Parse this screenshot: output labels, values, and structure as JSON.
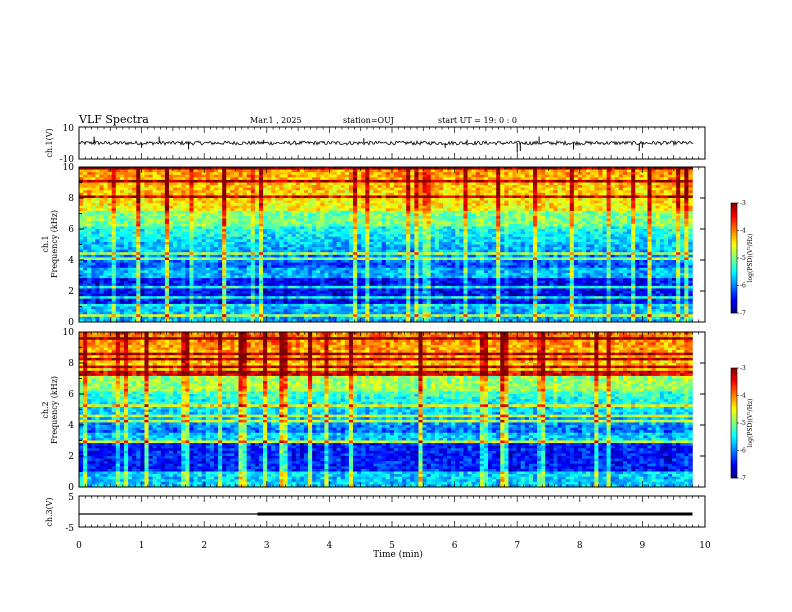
{
  "header": {
    "title": "VLF Spectra",
    "date": "Mar.1  , 2025",
    "station": "station=OUJ",
    "start": "start  UT  =   19: 0  : 0"
  },
  "chart_data": [
    {
      "type": "line",
      "name": "ch1-waveform",
      "ylabel": "ch.1(V)",
      "ylim": [
        -10,
        10
      ],
      "yticks": [
        "10",
        "-10"
      ],
      "xlim": [
        0,
        10
      ],
      "baseline": 0,
      "noise_amplitude": 1.2,
      "spikes_x_min": [
        0.24,
        0.25,
        1.0,
        1.28,
        1.75,
        2.95,
        4.55,
        5.85,
        6.2,
        7.0,
        7.05,
        7.35,
        7.9,
        8.95,
        9.0
      ],
      "spikes_y": [
        4,
        2,
        -3,
        4,
        -4,
        2,
        3,
        -3,
        2,
        -6,
        -5,
        4,
        -4,
        -5,
        -3
      ]
    },
    {
      "type": "heatmap",
      "name": "ch1-spectrogram",
      "ylabel_channel": "ch.1",
      "ylabel": "Frequency (kHz)",
      "ylim": [
        0,
        10
      ],
      "yticks": [
        "0",
        "2",
        "4",
        "6",
        "8",
        "10"
      ],
      "xlim": [
        0,
        10
      ],
      "colorbar": {
        "label": "log(PSD)(V²/Hz)",
        "range": [
          -7,
          -3
        ],
        "ticks": [
          "-3",
          "-4",
          "-5",
          "-6",
          "-7"
        ]
      }
    },
    {
      "type": "heatmap",
      "name": "ch2-spectrogram",
      "ylabel_channel": "ch.2",
      "ylabel": "Frequency (kHz)",
      "ylim": [
        0,
        10
      ],
      "yticks": [
        "0",
        "2",
        "4",
        "6",
        "8",
        "10"
      ],
      "xlim": [
        0,
        10
      ],
      "colorbar": {
        "label": "log(PSD)(V²/Hz)",
        "range": [
          -7,
          -3
        ],
        "ticks": [
          "-3",
          "-4",
          "-5",
          "-6",
          "-7"
        ]
      }
    },
    {
      "type": "line",
      "name": "ch3-signal",
      "ylabel": "ch.3(V)",
      "ylim": [
        -5,
        5
      ],
      "yticks": [
        "5",
        "-5"
      ],
      "xlim": [
        0,
        10
      ],
      "segments": [
        {
          "x": [
            0,
            2.85
          ],
          "y": -0.8,
          "weight": "thin"
        },
        {
          "x": [
            2.85,
            9.8
          ],
          "y": -0.8,
          "weight": "thick"
        }
      ]
    }
  ],
  "xaxis": {
    "label": "Time  (min)",
    "ticks": [
      "0",
      "1",
      "2",
      "3",
      "4",
      "5",
      "6",
      "7",
      "8",
      "9",
      "10"
    ]
  }
}
